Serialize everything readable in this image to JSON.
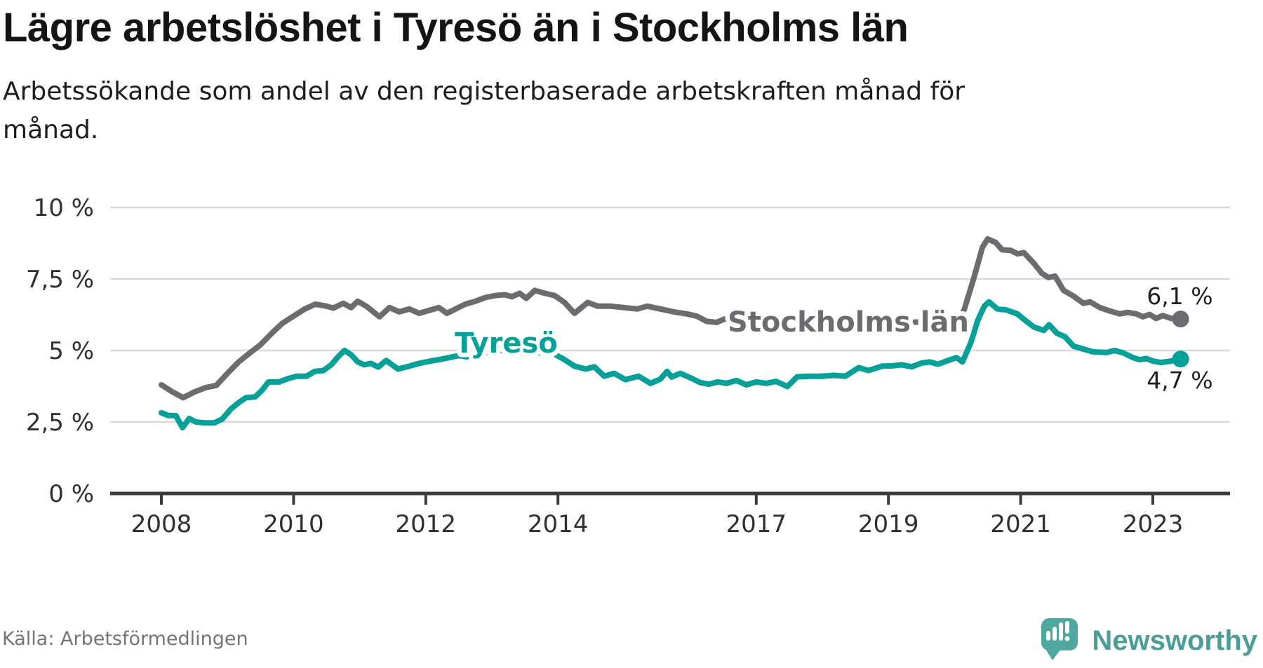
{
  "header": {
    "title": "Lägre arbetslöshet i Tyresö än i Stockholms län",
    "subtitle_lines": [
      "Arbetssökande som andel av den registerbaserade arbetskraften månad för",
      "månad."
    ]
  },
  "footer": {
    "source": "Källa: Arbetsförmedlingen",
    "brand": "Newsworthy"
  },
  "colors": {
    "stockholm_line": "#6b6b70",
    "tyreso_line": "#05a098",
    "axis": "#3a3a3f",
    "gridline": "#dadadc",
    "tick_text": "#2f2f34",
    "end_label_text": "#1e1e22",
    "logo_teal": "#50a7a0",
    "brand_text": "#4c9d97",
    "background": "#ffffff"
  },
  "chart_data": {
    "type": "line",
    "title": "Lägre arbetslöshet i Tyresö än i Stockholms län",
    "subtitle": "Arbetssökande som andel av den registerbaserade arbetskraften månad för månad.",
    "xlabel": "",
    "ylabel": "",
    "grid": "horizontal",
    "legend": "inline-labels",
    "x_axis": {
      "range": [
        2007.2,
        2024.2
      ],
      "ticks": [
        {
          "label": "2008",
          "year": 2008
        },
        {
          "label": "2010",
          "year": 2010
        },
        {
          "label": "2012",
          "year": 2012
        },
        {
          "label": "2014",
          "year": 2014
        },
        {
          "label": "2017",
          "year": 2017
        },
        {
          "label": "2019",
          "year": 2019
        },
        {
          "label": "2021",
          "year": 2021
        },
        {
          "label": "2023",
          "year": 2023
        }
      ]
    },
    "y_axis": {
      "unit": "%",
      "range": [
        0,
        10
      ],
      "ticks": [
        {
          "label": "0 %",
          "value": 0
        },
        {
          "label": "2,5 %",
          "value": 2.5
        },
        {
          "label": "5 %",
          "value": 5
        },
        {
          "label": "7,5 %",
          "value": 7.5
        },
        {
          "label": "10 %",
          "value": 10
        }
      ]
    },
    "series": [
      {
        "name": "Stockholms län",
        "color": "#6b6b70",
        "end_value": 6.1,
        "end_label": "6,1 %",
        "points": [
          [
            2008.0,
            3.8
          ],
          [
            2008.17,
            3.55
          ],
          [
            2008.33,
            3.35
          ],
          [
            2008.5,
            3.55
          ],
          [
            2008.67,
            3.7
          ],
          [
            2008.83,
            3.78
          ],
          [
            2009.0,
            4.2
          ],
          [
            2009.17,
            4.6
          ],
          [
            2009.33,
            4.9
          ],
          [
            2009.5,
            5.2
          ],
          [
            2009.67,
            5.6
          ],
          [
            2009.83,
            5.95
          ],
          [
            2010.0,
            6.2
          ],
          [
            2010.17,
            6.45
          ],
          [
            2010.33,
            6.62
          ],
          [
            2010.5,
            6.55
          ],
          [
            2010.6,
            6.48
          ],
          [
            2010.75,
            6.65
          ],
          [
            2010.87,
            6.5
          ],
          [
            2010.97,
            6.72
          ],
          [
            2011.1,
            6.55
          ],
          [
            2011.3,
            6.18
          ],
          [
            2011.45,
            6.5
          ],
          [
            2011.6,
            6.35
          ],
          [
            2011.75,
            6.45
          ],
          [
            2011.9,
            6.3
          ],
          [
            2012.05,
            6.4
          ],
          [
            2012.2,
            6.5
          ],
          [
            2012.32,
            6.3
          ],
          [
            2012.45,
            6.45
          ],
          [
            2012.6,
            6.62
          ],
          [
            2012.75,
            6.72
          ],
          [
            2012.9,
            6.85
          ],
          [
            2013.05,
            6.92
          ],
          [
            2013.2,
            6.95
          ],
          [
            2013.3,
            6.88
          ],
          [
            2013.42,
            7.0
          ],
          [
            2013.52,
            6.82
          ],
          [
            2013.65,
            7.1
          ],
          [
            2013.8,
            7.0
          ],
          [
            2013.95,
            6.92
          ],
          [
            2014.1,
            6.68
          ],
          [
            2014.25,
            6.3
          ],
          [
            2014.45,
            6.68
          ],
          [
            2014.6,
            6.55
          ],
          [
            2014.8,
            6.55
          ],
          [
            2015.0,
            6.5
          ],
          [
            2015.2,
            6.45
          ],
          [
            2015.35,
            6.55
          ],
          [
            2015.55,
            6.45
          ],
          [
            2015.75,
            6.35
          ],
          [
            2015.95,
            6.28
          ],
          [
            2016.1,
            6.2
          ],
          [
            2016.25,
            6.02
          ],
          [
            2016.4,
            5.98
          ],
          [
            2016.52,
            6.1
          ],
          [
            2017.0,
            6.02
          ],
          [
            2017.5,
            5.92
          ],
          [
            2018.0,
            5.88
          ],
          [
            2018.5,
            5.9
          ],
          [
            2019.0,
            5.95
          ],
          [
            2019.5,
            6.0
          ],
          [
            2019.85,
            6.08
          ],
          [
            2019.98,
            6.12
          ],
          [
            2020.07,
            6.02
          ],
          [
            2020.15,
            6.45
          ],
          [
            2020.3,
            7.6
          ],
          [
            2020.42,
            8.6
          ],
          [
            2020.5,
            8.9
          ],
          [
            2020.62,
            8.78
          ],
          [
            2020.72,
            8.52
          ],
          [
            2020.85,
            8.5
          ],
          [
            2020.95,
            8.38
          ],
          [
            2021.05,
            8.42
          ],
          [
            2021.2,
            8.05
          ],
          [
            2021.32,
            7.7
          ],
          [
            2021.42,
            7.55
          ],
          [
            2021.52,
            7.6
          ],
          [
            2021.65,
            7.1
          ],
          [
            2021.8,
            6.9
          ],
          [
            2021.95,
            6.65
          ],
          [
            2022.05,
            6.7
          ],
          [
            2022.2,
            6.5
          ],
          [
            2022.35,
            6.38
          ],
          [
            2022.5,
            6.28
          ],
          [
            2022.62,
            6.33
          ],
          [
            2022.75,
            6.28
          ],
          [
            2022.85,
            6.18
          ],
          [
            2022.95,
            6.26
          ],
          [
            2023.05,
            6.12
          ],
          [
            2023.15,
            6.22
          ],
          [
            2023.28,
            6.12
          ],
          [
            2023.42,
            6.1
          ]
        ]
      },
      {
        "name": "Tyresö",
        "color": "#05a098",
        "end_value": 4.7,
        "end_label": "4,7 %",
        "points": [
          [
            2008.0,
            2.82
          ],
          [
            2008.1,
            2.73
          ],
          [
            2008.22,
            2.72
          ],
          [
            2008.32,
            2.3
          ],
          [
            2008.42,
            2.62
          ],
          [
            2008.52,
            2.5
          ],
          [
            2008.65,
            2.47
          ],
          [
            2008.8,
            2.47
          ],
          [
            2008.92,
            2.6
          ],
          [
            2009.05,
            2.95
          ],
          [
            2009.17,
            3.18
          ],
          [
            2009.28,
            3.35
          ],
          [
            2009.42,
            3.38
          ],
          [
            2009.52,
            3.6
          ],
          [
            2009.62,
            3.9
          ],
          [
            2009.78,
            3.9
          ],
          [
            2009.92,
            4.02
          ],
          [
            2010.05,
            4.1
          ],
          [
            2010.2,
            4.1
          ],
          [
            2010.32,
            4.27
          ],
          [
            2010.45,
            4.3
          ],
          [
            2010.57,
            4.5
          ],
          [
            2010.67,
            4.77
          ],
          [
            2010.77,
            5.0
          ],
          [
            2010.87,
            4.85
          ],
          [
            2010.97,
            4.6
          ],
          [
            2011.07,
            4.5
          ],
          [
            2011.17,
            4.55
          ],
          [
            2011.28,
            4.42
          ],
          [
            2011.4,
            4.65
          ],
          [
            2011.58,
            4.35
          ],
          [
            2011.75,
            4.45
          ],
          [
            2011.9,
            4.55
          ],
          [
            2012.05,
            4.62
          ],
          [
            2012.2,
            4.68
          ],
          [
            2012.35,
            4.75
          ],
          [
            2012.5,
            4.82
          ],
          [
            2012.62,
            4.78
          ],
          [
            2012.77,
            4.85
          ],
          [
            2012.9,
            4.92
          ],
          [
            2013.07,
            5.05
          ],
          [
            2013.22,
            4.95
          ],
          [
            2013.4,
            4.9
          ],
          [
            2013.6,
            4.95
          ],
          [
            2013.8,
            4.9
          ],
          [
            2013.95,
            4.87
          ],
          [
            2014.1,
            4.68
          ],
          [
            2014.25,
            4.45
          ],
          [
            2014.42,
            4.35
          ],
          [
            2014.55,
            4.43
          ],
          [
            2014.7,
            4.1
          ],
          [
            2014.85,
            4.2
          ],
          [
            2015.02,
            3.98
          ],
          [
            2015.22,
            4.1
          ],
          [
            2015.4,
            3.85
          ],
          [
            2015.55,
            4.0
          ],
          [
            2015.65,
            4.27
          ],
          [
            2015.72,
            4.07
          ],
          [
            2015.85,
            4.2
          ],
          [
            2016.0,
            4.05
          ],
          [
            2016.15,
            3.88
          ],
          [
            2016.28,
            3.82
          ],
          [
            2016.42,
            3.9
          ],
          [
            2016.55,
            3.85
          ],
          [
            2016.7,
            3.95
          ],
          [
            2016.85,
            3.8
          ],
          [
            2017.0,
            3.9
          ],
          [
            2017.15,
            3.85
          ],
          [
            2017.3,
            3.92
          ],
          [
            2017.47,
            3.74
          ],
          [
            2017.62,
            4.08
          ],
          [
            2017.8,
            4.1
          ],
          [
            2018.0,
            4.1
          ],
          [
            2018.18,
            4.13
          ],
          [
            2018.35,
            4.1
          ],
          [
            2018.55,
            4.4
          ],
          [
            2018.7,
            4.3
          ],
          [
            2018.9,
            4.45
          ],
          [
            2019.05,
            4.46
          ],
          [
            2019.2,
            4.5
          ],
          [
            2019.35,
            4.43
          ],
          [
            2019.5,
            4.56
          ],
          [
            2019.62,
            4.6
          ],
          [
            2019.75,
            4.52
          ],
          [
            2019.9,
            4.65
          ],
          [
            2020.03,
            4.75
          ],
          [
            2020.12,
            4.6
          ],
          [
            2020.25,
            5.3
          ],
          [
            2020.35,
            6.05
          ],
          [
            2020.45,
            6.55
          ],
          [
            2020.52,
            6.7
          ],
          [
            2020.65,
            6.45
          ],
          [
            2020.78,
            6.42
          ],
          [
            2020.95,
            6.28
          ],
          [
            2021.07,
            6.05
          ],
          [
            2021.2,
            5.82
          ],
          [
            2021.35,
            5.7
          ],
          [
            2021.43,
            5.9
          ],
          [
            2021.55,
            5.6
          ],
          [
            2021.67,
            5.48
          ],
          [
            2021.8,
            5.15
          ],
          [
            2021.95,
            5.05
          ],
          [
            2022.1,
            4.95
          ],
          [
            2022.3,
            4.93
          ],
          [
            2022.42,
            5.0
          ],
          [
            2022.55,
            4.92
          ],
          [
            2022.7,
            4.75
          ],
          [
            2022.8,
            4.68
          ],
          [
            2022.9,
            4.72
          ],
          [
            2023.0,
            4.63
          ],
          [
            2023.12,
            4.58
          ],
          [
            2023.25,
            4.62
          ],
          [
            2023.42,
            4.7
          ]
        ]
      }
    ]
  }
}
